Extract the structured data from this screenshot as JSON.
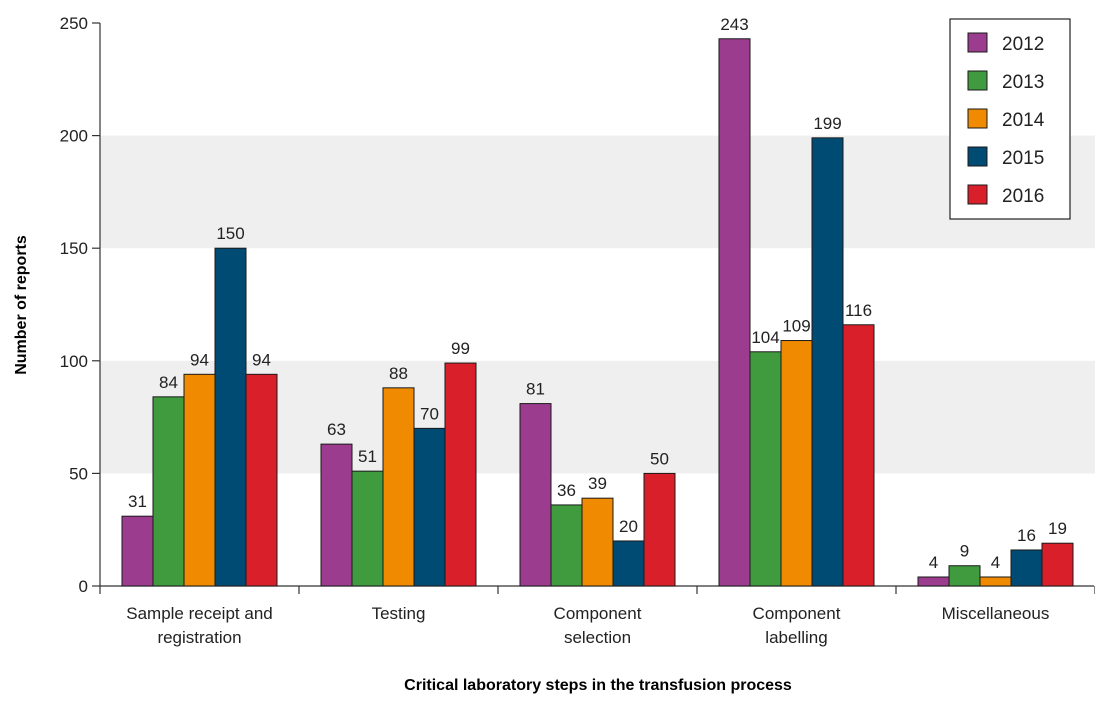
{
  "chart_data": {
    "type": "bar",
    "title": "",
    "xlabel": "Critical laboratory steps in the transfusion process",
    "ylabel": "Number of reports",
    "ylim": [
      0,
      250
    ],
    "yticks": [
      0,
      50,
      100,
      150,
      200,
      250
    ],
    "grid": "alternating horizontal bands",
    "legend_position": "top-right",
    "categories": [
      [
        "Sample receipt and",
        "registration"
      ],
      [
        "Testing"
      ],
      [
        "Component",
        "selection"
      ],
      [
        "Component",
        "labelling"
      ],
      [
        "Miscellaneous"
      ]
    ],
    "series": [
      {
        "name": "2012",
        "color": "#9b3c8e",
        "values": [
          31,
          63,
          81,
          243,
          4
        ]
      },
      {
        "name": "2013",
        "color": "#3f9b3d",
        "values": [
          84,
          51,
          36,
          104,
          9
        ]
      },
      {
        "name": "2014",
        "color": "#f08a00",
        "values": [
          94,
          88,
          39,
          109,
          4
        ]
      },
      {
        "name": "2015",
        "color": "#004b73",
        "values": [
          150,
          70,
          20,
          199,
          16
        ]
      },
      {
        "name": "2016",
        "color": "#d9202a",
        "values": [
          94,
          99,
          50,
          116,
          19
        ]
      }
    ]
  }
}
